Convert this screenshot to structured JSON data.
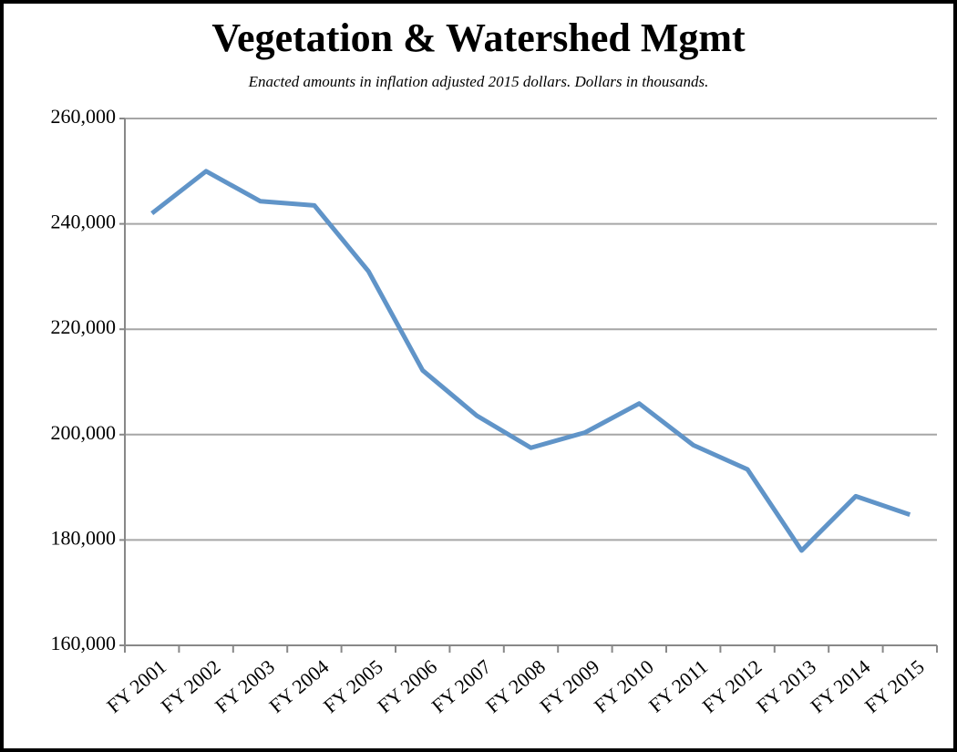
{
  "chart_data": {
    "type": "line",
    "title": "Vegetation & Watershed Mgmt",
    "subtitle": "Enacted amounts in inflation adjusted 2015 dollars. Dollars in thousands.",
    "categories": [
      "FY 2001",
      "FY 2002",
      "FY 2003",
      "FY 2004",
      "FY 2005",
      "FY 2006",
      "FY 2007",
      "FY 2008",
      "FY 2009",
      "FY 2010",
      "FY 2011",
      "FY 2012",
      "FY 2013",
      "FY 2014",
      "FY 2015"
    ],
    "series": [
      {
        "name": "Vegetation & Watershed Mgmt",
        "color": "#6094c8",
        "values": [
          242000,
          250000,
          244300,
          243500,
          231000,
          212200,
          203600,
          197500,
          200400,
          205900,
          198000,
          193400,
          178000,
          188300,
          184800
        ]
      }
    ],
    "ylim": [
      160000,
      260000
    ],
    "yticks": [
      {
        "value": 160000,
        "label": "160,000"
      },
      {
        "value": 180000,
        "label": "180,000"
      },
      {
        "value": 200000,
        "label": "200,000"
      },
      {
        "value": 220000,
        "label": "220,000"
      },
      {
        "value": 240000,
        "label": "240,000"
      },
      {
        "value": 260000,
        "label": "260,000"
      }
    ],
    "grid": true
  }
}
